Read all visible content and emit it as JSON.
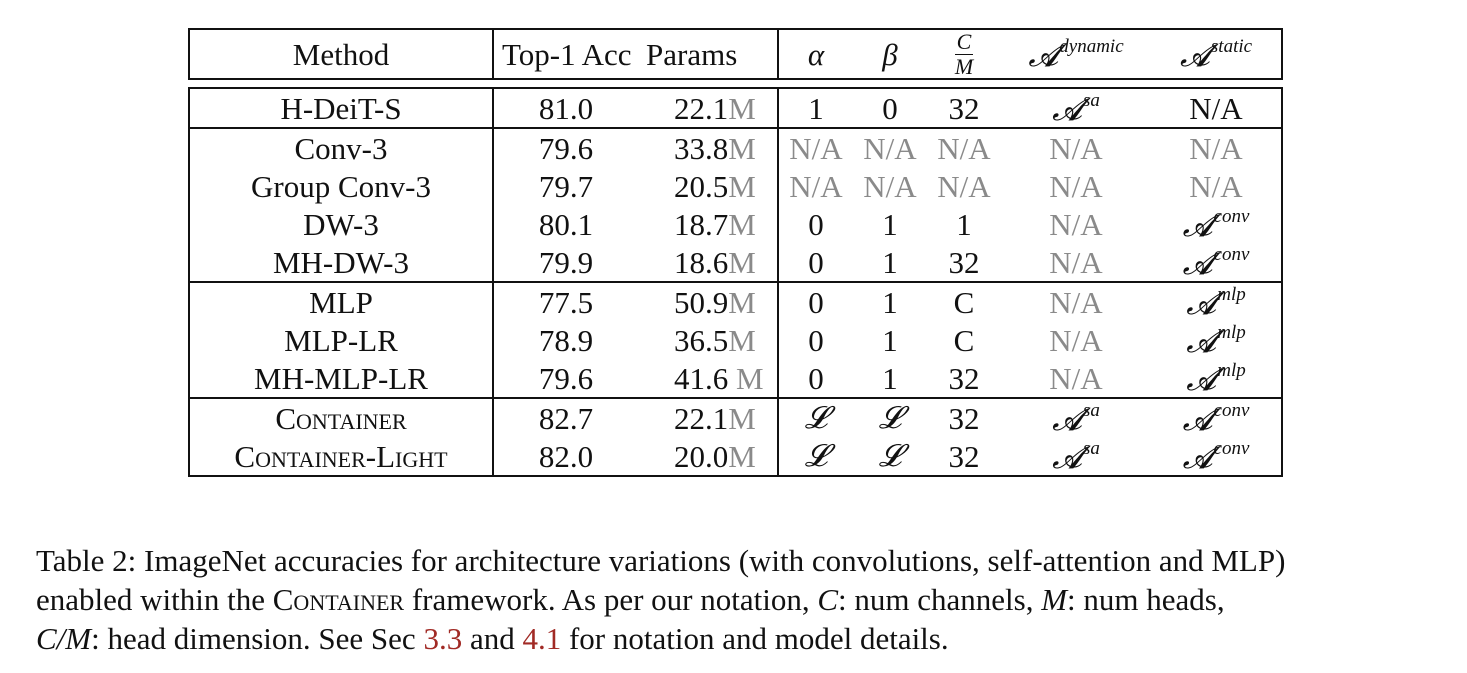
{
  "table": {
    "header": {
      "method": "Method",
      "top1": "Top-1 Acc",
      "params": "Params",
      "alpha": "α",
      "beta": "β",
      "cm_num": "C",
      "cm_den": "M",
      "dyn_base": "𝓐",
      "dyn_sup": "dynamic",
      "st_base": "𝓐",
      "st_sup": "static"
    },
    "unit": "M",
    "rows": [
      {
        "method": "H-DeiT-S",
        "acc": "81.0",
        "params": "22.1",
        "alpha": "1",
        "beta": "0",
        "cm": "32",
        "dyn": "𝓐",
        "dyn_sup": "sa",
        "st": "N/A",
        "st_sup": ""
      },
      {
        "method": "Conv-3",
        "acc": "79.6",
        "params": "33.8",
        "alpha": "N/A",
        "beta": "N/A",
        "cm": "N/A",
        "dyn": "N/A",
        "dyn_sup": "",
        "st": "N/A",
        "st_sup": ""
      },
      {
        "method": "Group Conv-3",
        "acc": "79.7",
        "params": "20.5",
        "alpha": "N/A",
        "beta": "N/A",
        "cm": "N/A",
        "dyn": "N/A",
        "dyn_sup": "",
        "st": "N/A",
        "st_sup": ""
      },
      {
        "method": "DW-3",
        "acc": "80.1",
        "params": "18.7",
        "alpha": "0",
        "beta": "1",
        "cm": "1",
        "dyn": "N/A",
        "dyn_sup": "",
        "st": "𝓐",
        "st_sup": "conv"
      },
      {
        "method": "MH-DW-3",
        "acc": "79.9",
        "params": "18.6",
        "alpha": "0",
        "beta": "1",
        "cm": "32",
        "dyn": "N/A",
        "dyn_sup": "",
        "st": "𝓐",
        "st_sup": "conv"
      },
      {
        "method": "MLP",
        "acc": "77.5",
        "params": "50.9",
        "alpha": "0",
        "beta": "1",
        "cm": "C",
        "dyn": "N/A",
        "dyn_sup": "",
        "st": "𝓐",
        "st_sup": "mlp"
      },
      {
        "method": "MLP-LR",
        "acc": "78.9",
        "params": "36.5",
        "alpha": "0",
        "beta": "1",
        "cm": "C",
        "dyn": "N/A",
        "dyn_sup": "",
        "st": "𝓐",
        "st_sup": "mlp"
      },
      {
        "method": "MH-MLP-LR",
        "acc": "79.6",
        "params": "41.6 ",
        "alpha": "0",
        "beta": "1",
        "cm": "32",
        "dyn": "N/A",
        "dyn_sup": "",
        "st": "𝓐",
        "st_sup": "mlp"
      },
      {
        "method": "Container",
        "acc": "82.7",
        "params": "22.1",
        "alpha": "𝓛",
        "beta": "𝓛",
        "cm": "32",
        "dyn": "𝓐",
        "dyn_sup": "sa",
        "st": "𝓐",
        "st_sup": "conv"
      },
      {
        "method": "Container-Light",
        "acc": "82.0",
        "params": "20.0",
        "alpha": "𝓛",
        "beta": "𝓛",
        "cm": "32",
        "dyn": "𝓐",
        "dyn_sup": "sa",
        "st": "𝓐",
        "st_sup": "conv"
      }
    ]
  },
  "caption": {
    "l1": "Table 2: ImageNet accuracies for architecture variations (with convolutions, self-attention and MLP)",
    "l2a": "enabled within the ",
    "l2b": "Container",
    "l2c": " framework. As per our notation, ",
    "l2d": "C",
    "l2e": ": num channels, ",
    "l2f": "M",
    "l2g": ": num heads,",
    "l3a": "C/M",
    "l3b": ": head dimension. See Sec ",
    "l3c": "3.3",
    "l3d": " and  ",
    "l3e": "4.1",
    "l3f": " for notation and model details."
  }
}
